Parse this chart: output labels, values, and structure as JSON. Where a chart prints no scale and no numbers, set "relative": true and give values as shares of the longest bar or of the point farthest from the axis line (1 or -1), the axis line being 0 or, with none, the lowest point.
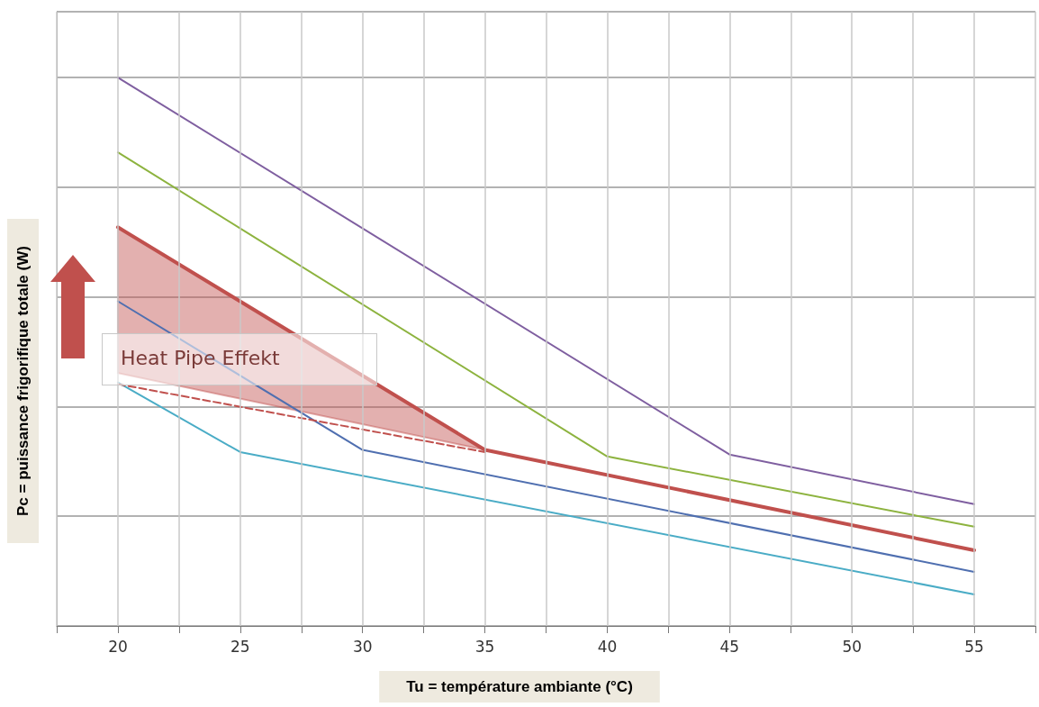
{
  "chart_data": {
    "type": "line",
    "relative": true,
    "xlabel": "Tu = température ambiante (°C)",
    "ylabel": "Pc = puissance frigorifique totale (W)",
    "xlim": [
      17.5,
      57.5
    ],
    "xticks": [
      {
        "value": 17.5,
        "label": null
      },
      20,
      {
        "value": 22.5,
        "label": null
      },
      25,
      {
        "value": 27.5,
        "label": null
      },
      30,
      {
        "value": 32.5,
        "label": null
      },
      35,
      {
        "value": 37.5,
        "label": null
      },
      40,
      {
        "value": 42.5,
        "label": null
      },
      45,
      {
        "value": 47.5,
        "label": null
      },
      50,
      {
        "value": 52.5,
        "label": null
      },
      55,
      {
        "value": 57.5,
        "label": null
      }
    ],
    "grid": true,
    "marker": "none",
    "annotations": [
      "Heat Pipe Effekt"
    ],
    "series": [
      {
        "color": "#7f5fa0",
        "x": [
          20,
          45,
          55
        ],
        "values": [
          1,
          0.3125,
          0.222
        ]
      },
      {
        "color": "#8db33f",
        "x": [
          20,
          40,
          55
        ],
        "values": [
          0.8635,
          0.309,
          0.181
        ]
      },
      {
        "color": "#4f6fb0",
        "x": [
          20,
          30,
          55
        ],
        "values": [
          0.592,
          0.321,
          0.0987
        ]
      },
      {
        "color": "#4aacc6",
        "x": [
          20,
          25,
          55
        ],
        "values": [
          0.444,
          0.317,
          0.0576
        ]
      },
      {
        "color": "#c0504d",
        "line_style": "dashed",
        "x": [
          20,
          35
        ],
        "values": [
          0.441,
          0.317
        ]
      },
      {
        "color": "#c0504d",
        "x": [
          20,
          35,
          55
        ],
        "values": [
          0.727,
          0.321,
          0.138
        ],
        "lower": [
          0.461,
          0.321,
          0.138
        ],
        "upper": [
          0.727,
          0.321,
          0.138
        ]
      }
    ]
  }
}
